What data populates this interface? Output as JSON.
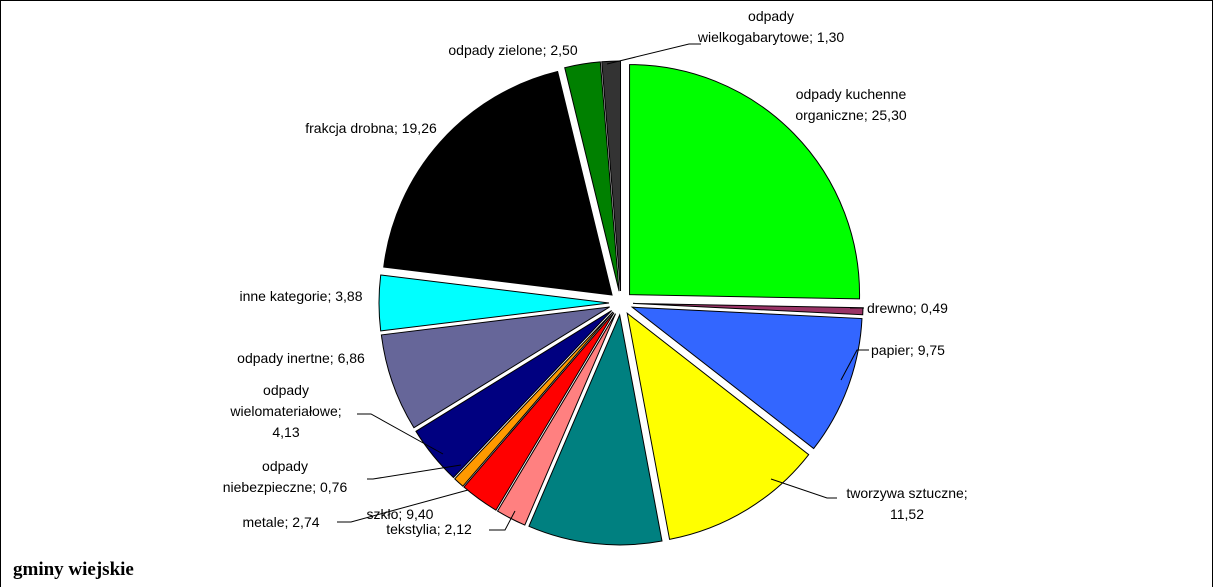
{
  "caption": "gminy wiejskie",
  "chart_data": {
    "type": "pie",
    "title": "",
    "slices": [
      {
        "label": "odpady kuchenne organiczne; 25,30",
        "value": 25.3,
        "color": "#00ff00"
      },
      {
        "label": "drewno; 0,49",
        "value": 0.49,
        "color": "#993366"
      },
      {
        "label": "papier; 9,75",
        "value": 9.75,
        "color": "#3366ff"
      },
      {
        "label": "tworzywa sztuczne; 11,52",
        "value": 11.52,
        "color": "#ffff00"
      },
      {
        "label": "szkło; 9,40",
        "value": 9.4,
        "color": "#008080"
      },
      {
        "label": "tekstylia; 2,12",
        "value": 2.12,
        "color": "#ff8080"
      },
      {
        "label": "metale; 2,74",
        "value": 2.74,
        "color": "#ff0000"
      },
      {
        "label": "odpady niebezpieczne; 0,76",
        "value": 0.76,
        "color": "#ff9900"
      },
      {
        "label": "odpady wielomateriałowe; 4,13",
        "value": 4.13,
        "color": "#000080"
      },
      {
        "label": "odpady inertne; 6,86",
        "value": 6.86,
        "color": "#666699"
      },
      {
        "label": "inne kategorie; 3,88",
        "value": 3.88,
        "color": "#00ffff"
      },
      {
        "label": "frakcja drobna; 19,26",
        "value": 19.26,
        "color": "#000000"
      },
      {
        "label": "odpady zielone; 2,50",
        "value": 2.5,
        "color": "#008000"
      },
      {
        "label": "odpady wielkogabarytowe; 1,30",
        "value": 1.3,
        "color": "#333333"
      }
    ]
  }
}
